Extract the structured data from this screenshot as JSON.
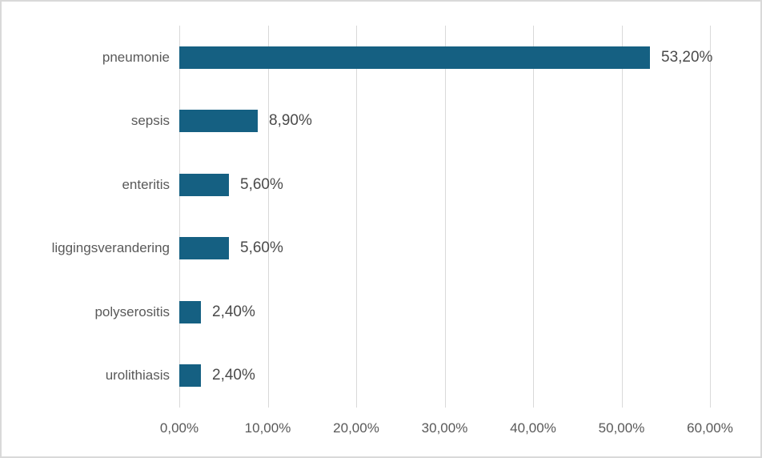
{
  "chart_data": {
    "type": "bar",
    "orientation": "horizontal",
    "title": "",
    "xlabel": "",
    "ylabel": "",
    "categories": [
      "pneumonie",
      "sepsis",
      "enteritis",
      "liggingsverandering",
      "polyserositis",
      "urolithiasis"
    ],
    "values": [
      53.2,
      8.9,
      5.6,
      5.6,
      2.4,
      2.4
    ],
    "data_labels": [
      "53,20%",
      "8,90%",
      "5,60%",
      "5,60%",
      "2,40%",
      "2,40%"
    ],
    "x_ticks": [
      "0,00%",
      "10,00%",
      "20,00%",
      "30,00%",
      "40,00%",
      "50,00%",
      "60,00%"
    ],
    "x_tick_values": [
      0,
      10,
      20,
      30,
      40,
      50,
      60
    ],
    "xlim": [
      0,
      60
    ],
    "grid": "vertical-gridlines-on",
    "legend": "none",
    "colors": {
      "bar_fill": "#156082",
      "gridline": "#d9d9d9",
      "axis_text": "#595959",
      "data_label_text": "#4a4a4a",
      "frame_border": "#d9d9d9",
      "background": "#ffffff"
    }
  }
}
